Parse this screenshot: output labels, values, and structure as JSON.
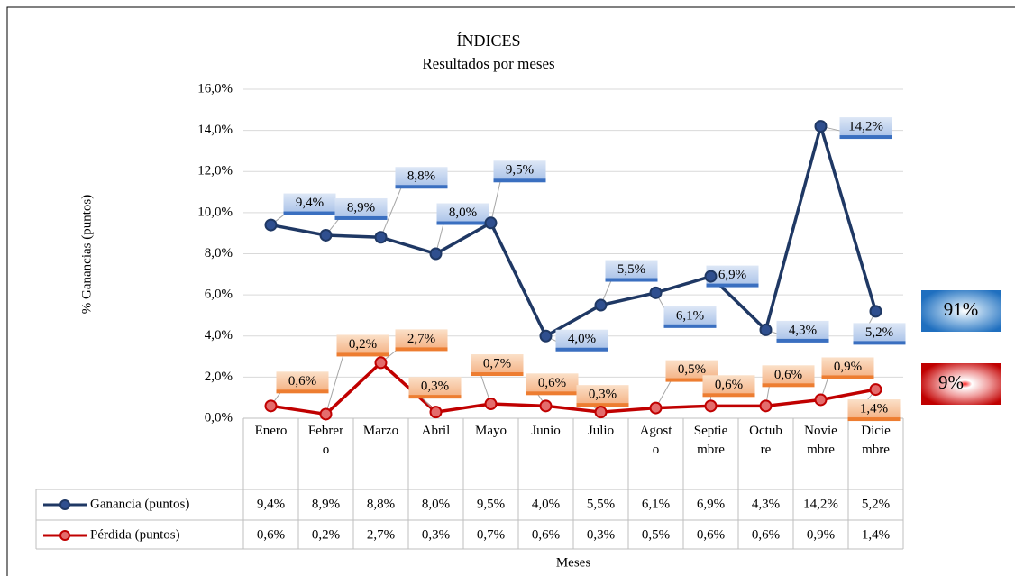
{
  "chart_data": {
    "type": "line",
    "title": "ÍNDICES",
    "subtitle": "Resultados por meses",
    "y_label": "% Ganancias (puntos)",
    "x_label": "Meses",
    "categories": [
      "Enero",
      "Febrero",
      "Marzo",
      "Abril",
      "Mayo",
      "Junio",
      "Julio",
      "Agosto",
      "Septiembre",
      "Octubre",
      "Noviembre",
      "Diciembre"
    ],
    "series": [
      {
        "name": "Ganancia (puntos)",
        "color": "#1f3864",
        "values": [
          9.4,
          8.9,
          8.8,
          8.0,
          9.5,
          4.0,
          5.5,
          6.1,
          6.9,
          4.3,
          14.2,
          5.2
        ],
        "value_labels": [
          "9,4%",
          "8,9%",
          "8,8%",
          "8,0%",
          "9,5%",
          "4,0%",
          "5,5%",
          "6,1%",
          "6,9%",
          "4,3%",
          "14,2%",
          "5,2%"
        ]
      },
      {
        "name": "Pérdida (puntos)",
        "color": "#c00000",
        "values": [
          0.6,
          0.2,
          2.7,
          0.3,
          0.7,
          0.6,
          0.3,
          0.5,
          0.6,
          0.6,
          0.9,
          1.4
        ],
        "value_labels": [
          "0,6%",
          "0,2%",
          "2,7%",
          "0,3%",
          "0,7%",
          "0,6%",
          "0,3%",
          "0,5%",
          "0,6%",
          "0,6%",
          "0,9%",
          "1,4%"
        ]
      }
    ],
    "ylim": [
      0,
      16
    ],
    "yticks": [
      {
        "value": 0,
        "label": "0,0%"
      },
      {
        "value": 2,
        "label": "2,0%"
      },
      {
        "value": 4,
        "label": "4,0%"
      },
      {
        "value": 6,
        "label": "6,0%"
      },
      {
        "value": 8,
        "label": "8,0%"
      },
      {
        "value": 10,
        "label": "10,0%"
      },
      {
        "value": 12,
        "label": "12,0%"
      },
      {
        "value": 14,
        "label": "14,0%"
      },
      {
        "value": 16,
        "label": "16,0%"
      }
    ],
    "grid": true
  },
  "badges": [
    "91%",
    "9%"
  ]
}
